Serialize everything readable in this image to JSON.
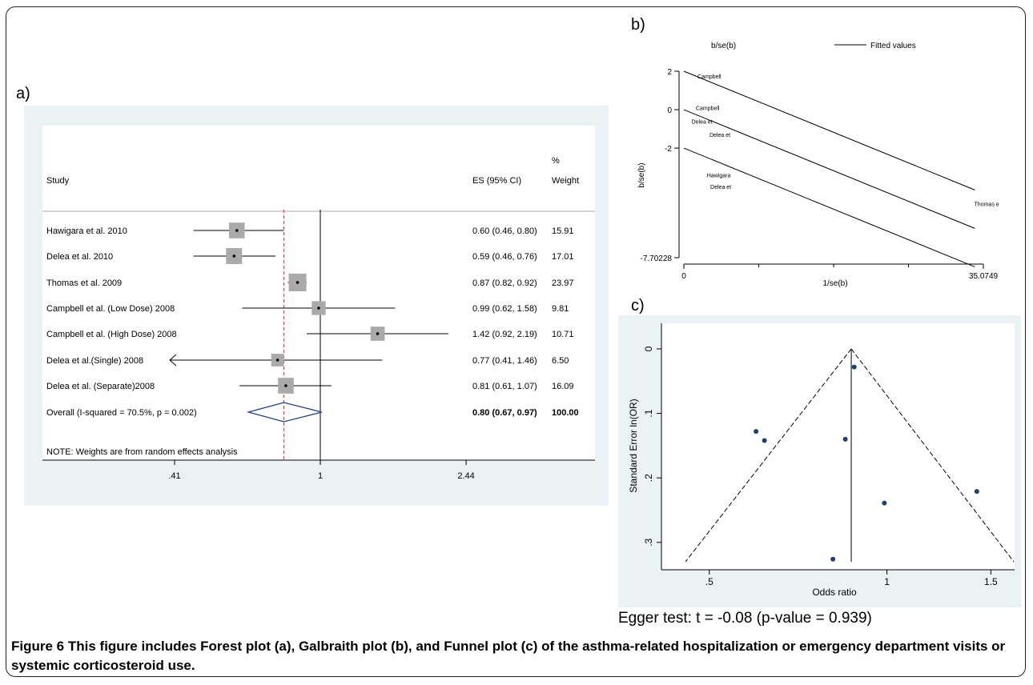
{
  "caption": {
    "label": "Figure 6",
    "text": "This figure includes Forest plot (a), Galbraith plot (b), and Funnel plot (c) of the asthma-related hospitalization or emergency department visits or systemic corticosteroid use."
  },
  "egger": "Egger test: t = -0.08 (p-value = 0.939)",
  "panels": {
    "a": "a)",
    "b": "b)",
    "c": "c)"
  },
  "chart_data": [
    {
      "type": "forest",
      "header": {
        "study": "Study",
        "es": "ES (95% CI)",
        "weight_top": "%",
        "weight": "Weight"
      },
      "studies": [
        {
          "label": "Hawigara et al. 2010",
          "es": 0.6,
          "lo": 0.46,
          "hi": 0.8,
          "text": "0.60 (0.46, 0.80)",
          "weight": "15.91"
        },
        {
          "label": "Delea et al. 2010",
          "es": 0.59,
          "lo": 0.46,
          "hi": 0.76,
          "text": "0.59 (0.46, 0.76)",
          "weight": "17.01"
        },
        {
          "label": "Thomas et al. 2009",
          "es": 0.87,
          "lo": 0.82,
          "hi": 0.92,
          "text": "0.87 (0.82, 0.92)",
          "weight": "23.97"
        },
        {
          "label": "Campbell et al. (Low Dose) 2008",
          "es": 0.99,
          "lo": 0.62,
          "hi": 1.58,
          "text": "0.99 (0.62, 1.58)",
          "weight": "9.81"
        },
        {
          "label": "Campbell et al. (High Dose) 2008",
          "es": 1.42,
          "lo": 0.92,
          "hi": 2.19,
          "text": "1.42 (0.92, 2.19)",
          "weight": "10.71"
        },
        {
          "label": "Delea et al.(Single) 2008",
          "es": 0.77,
          "lo": 0.41,
          "hi": 1.46,
          "text": "0.77 (0.41, 1.46)",
          "weight": "6.50"
        },
        {
          "label": "Delea et al. (Separate)2008",
          "es": 0.81,
          "lo": 0.61,
          "hi": 1.07,
          "text": "0.81 (0.61, 1.07)",
          "weight": "16.09"
        }
      ],
      "overall": {
        "label": "Overall  (I-squared = 70.5%, p = 0.002)",
        "es": 0.8,
        "lo": 0.67,
        "hi": 0.97,
        "text": "0.80 (0.67, 0.97)",
        "weight": "100.00"
      },
      "note": "NOTE: Weights are from random effects analysis",
      "xticks": [
        ".41",
        "1",
        "2.44"
      ],
      "xtick_values": [
        0.41,
        1,
        2.44
      ],
      "null_line": 1,
      "scale": "log"
    },
    {
      "type": "scatter",
      "legend": [
        "b/se(b)",
        "Fitted values"
      ],
      "ylabel": "b/se(b)",
      "xlabel": "1/se(b)",
      "yticks": [
        "2",
        "0",
        "-2",
        "-7.70228"
      ],
      "ytick_values": [
        2,
        0,
        -2,
        -7.70228
      ],
      "xticks": [
        "0",
        "35.0749"
      ],
      "xtick_values": [
        0,
        35.0749
      ],
      "xlim": [
        0,
        35.0749
      ],
      "ylim": [
        -7.70228,
        2
      ],
      "fitted_line": {
        "intercept": 0,
        "slope": -0.1813
      },
      "band_offset": 2,
      "points": [
        {
          "label": "Campbell",
          "x": 1.6,
          "y": 1.75
        },
        {
          "label": "Campbell",
          "x": 1.4,
          "y": 0.1
        },
        {
          "label": "Delea et",
          "x": 0.9,
          "y": -0.6
        },
        {
          "label": "Delea et",
          "x": 3.0,
          "y": -1.3
        },
        {
          "label": "Hawigara",
          "x": 2.7,
          "y": -3.4
        },
        {
          "label": "Delea et",
          "x": 3.1,
          "y": -4.0
        },
        {
          "label": "Thomas e",
          "x": 34.0,
          "y": -4.9
        }
      ]
    },
    {
      "type": "scatter",
      "ylabel": "Standard Error ln(OR)",
      "xlabel": "Odds ratio",
      "xticks": [
        ".5",
        "1",
        "1.5"
      ],
      "xtick_values": [
        0.5,
        1,
        1.5
      ],
      "yticks": [
        "0",
        ".1",
        ".2",
        ".3"
      ],
      "ytick_values": [
        0,
        0.1,
        0.2,
        0.3
      ],
      "xlim": [
        0.42,
        1.62
      ],
      "ylim": [
        0,
        0.335
      ],
      "summary_or": 0.87,
      "points": [
        {
          "x": 0.6,
          "y": 0.128
        },
        {
          "x": 0.62,
          "y": 0.142
        },
        {
          "x": 0.81,
          "y": 0.326
        },
        {
          "x": 0.85,
          "y": 0.14
        },
        {
          "x": 0.88,
          "y": 0.028
        },
        {
          "x": 0.99,
          "y": 0.239
        },
        {
          "x": 1.42,
          "y": 0.221
        }
      ]
    }
  ]
}
